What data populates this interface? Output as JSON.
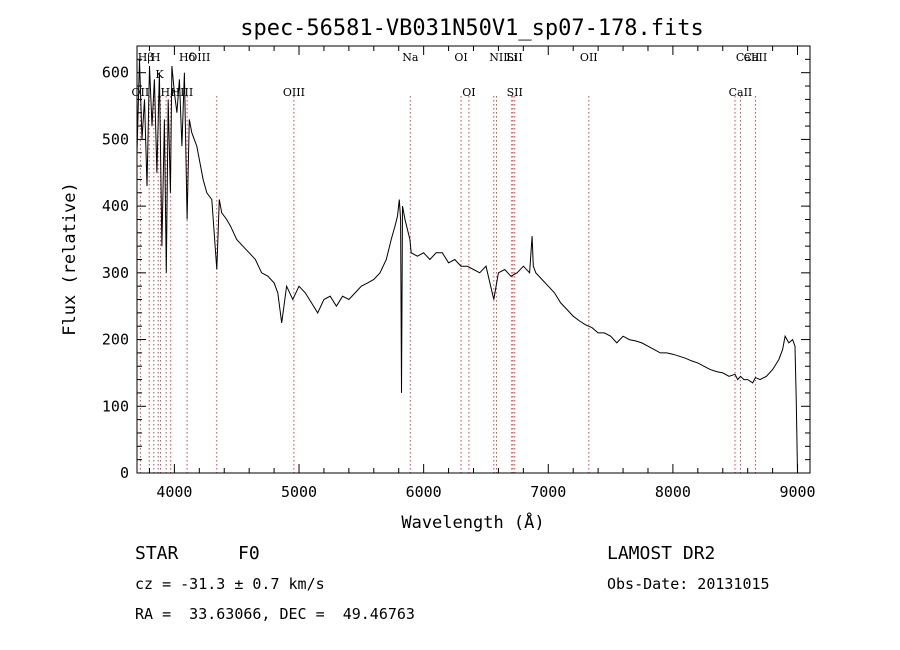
{
  "chart_data": {
    "type": "line",
    "title": "spec-56581-VB031N50V1_sp07-178.fits",
    "xlabel": "Wavelength (Å)",
    "ylabel": "Flux (relative)",
    "xlim": [
      3700,
      9100
    ],
    "ylim": [
      0,
      640
    ],
    "xticks": [
      4000,
      5000,
      6000,
      7000,
      8000,
      9000
    ],
    "yticks": [
      0,
      100,
      200,
      300,
      400,
      500,
      600
    ],
    "grid": false,
    "series": [
      {
        "x": [
          3700,
          3720,
          3740,
          3760,
          3780,
          3800,
          3820,
          3840,
          3860,
          3880,
          3900,
          3920,
          3935,
          3950,
          3968,
          3980,
          4000,
          4020,
          4040,
          4060,
          4080,
          4102,
          4120,
          4140,
          4160,
          4180,
          4200,
          4230,
          4260,
          4300,
          4340,
          4360,
          4380,
          4420,
          4450,
          4500,
          4550,
          4600,
          4650,
          4700,
          4750,
          4800,
          4830,
          4861,
          4900,
          4950,
          5000,
          5050,
          5100,
          5150,
          5200,
          5250,
          5300,
          5350,
          5400,
          5450,
          5500,
          5550,
          5600,
          5650,
          5700,
          5740,
          5770,
          5790,
          5805,
          5815,
          5822,
          5830,
          5850,
          5890,
          5900,
          5950,
          6000,
          6050,
          6100,
          6150,
          6200,
          6250,
          6300,
          6350,
          6400,
          6450,
          6500,
          6563,
          6600,
          6650,
          6700,
          6750,
          6800,
          6850,
          6870,
          6880,
          6900,
          6950,
          7000,
          7050,
          7100,
          7150,
          7200,
          7250,
          7300,
          7350,
          7400,
          7450,
          7500,
          7550,
          7600,
          7650,
          7700,
          7750,
          7800,
          7850,
          7900,
          7950,
          8000,
          8050,
          8100,
          8150,
          8200,
          8250,
          8300,
          8350,
          8400,
          8450,
          8498,
          8520,
          8542,
          8570,
          8600,
          8640,
          8662,
          8700,
          8750,
          8800,
          8850,
          8880,
          8900,
          8930,
          8960,
          8980,
          8990,
          9000
        ],
        "values": [
          480,
          620,
          500,
          560,
          430,
          610,
          520,
          590,
          450,
          600,
          340,
          530,
          300,
          560,
          420,
          610,
          570,
          540,
          590,
          490,
          600,
          380,
          530,
          510,
          500,
          490,
          470,
          440,
          420,
          410,
          305,
          410,
          390,
          380,
          370,
          350,
          340,
          330,
          320,
          300,
          295,
          285,
          270,
          225,
          280,
          260,
          280,
          270,
          255,
          240,
          260,
          265,
          250,
          265,
          260,
          270,
          280,
          285,
          290,
          300,
          320,
          350,
          370,
          385,
          410,
          380,
          120,
          400,
          380,
          350,
          330,
          325,
          330,
          320,
          330,
          330,
          315,
          320,
          310,
          310,
          305,
          300,
          310,
          260,
          300,
          305,
          295,
          300,
          310,
          300,
          355,
          310,
          300,
          290,
          280,
          270,
          255,
          245,
          235,
          228,
          222,
          218,
          210,
          210,
          205,
          195,
          205,
          200,
          198,
          195,
          190,
          185,
          180,
          180,
          178,
          175,
          172,
          168,
          165,
          160,
          155,
          152,
          150,
          145,
          148,
          140,
          145,
          140,
          140,
          135,
          143,
          140,
          145,
          155,
          170,
          185,
          205,
          195,
          200,
          190,
          105,
          0
        ]
      }
    ],
    "line_labels_top": [
      {
        "x": 3770,
        "label": "Hβ"
      },
      {
        "x": 3850,
        "label": "H"
      },
      {
        "x": 4102,
        "label": "Hδ"
      },
      {
        "x": 4200,
        "label": "OIII"
      },
      {
        "x": 5893,
        "label": "Na"
      },
      {
        "x": 6300,
        "label": "OI"
      },
      {
        "x": 6707,
        "label": "Li"
      },
      {
        "x": 6600,
        "label": "NII"
      },
      {
        "x": 6730,
        "label": "SII"
      },
      {
        "x": 7325,
        "label": "OII"
      },
      {
        "x": 8600,
        "label": "CaII"
      },
      {
        "x": 8662,
        "label": "CaII"
      }
    ],
    "line_labels_mid": [
      {
        "x": 3880,
        "label": "K"
      }
    ],
    "line_labels_low": [
      {
        "x": 3727,
        "label": "OII"
      },
      {
        "x": 3950,
        "label": "Hε"
      },
      {
        "x": 4060,
        "label": "HIII"
      },
      {
        "x": 4959,
        "label": "OIII"
      },
      {
        "x": 6363,
        "label": "OI"
      },
      {
        "x": 6731,
        "label": "SII"
      },
      {
        "x": 8542,
        "label": "CaII"
      }
    ],
    "marker_lines": [
      3727,
      3798,
      3835,
      3870,
      3889,
      3934,
      3970,
      4102,
      4340,
      4959,
      5893,
      6300,
      6363,
      6563,
      6585,
      6707,
      6717,
      6731,
      7325,
      8498,
      8542,
      8662
    ]
  },
  "info": {
    "class": "STAR",
    "subclass": "F0",
    "survey": "LAMOST DR2",
    "cz": "cz = -31.3 ± 0.7 km/s",
    "obs_date": "Obs-Date: 20131015",
    "radec": "RA =  33.63066, DEC =  49.46763"
  }
}
